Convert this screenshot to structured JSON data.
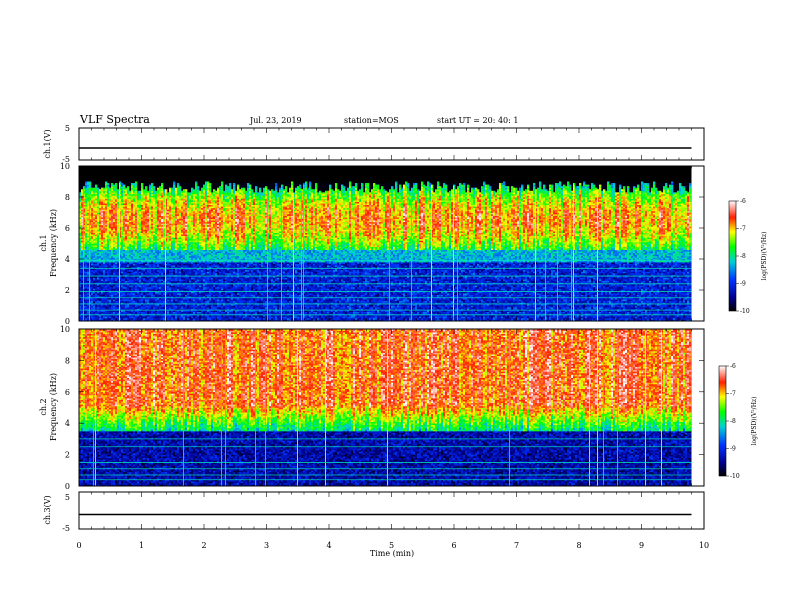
{
  "header": {
    "title": "VLF Spectra",
    "date": "Jul. 23, 2019",
    "station": "station=MOS",
    "start": "start UT =  20: 40: 1"
  },
  "chart_data": [
    {
      "type": "line",
      "panel": "ch1-voltage",
      "ylabel": "ch.1(V)",
      "ylim": [
        -5,
        5
      ],
      "yticks": [
        "5",
        "-5"
      ],
      "xlim": [
        0,
        10
      ],
      "series": [
        {
          "x": [
            0,
            9.8
          ],
          "y": [
            0,
            0
          ]
        }
      ]
    },
    {
      "type": "heatmap",
      "panel": "ch1-spectrogram",
      "ylabel_line1": "ch.1",
      "ylabel_line2": "Frequency (kHz)",
      "ylim": [
        0,
        10
      ],
      "yticks": [
        "0",
        "2",
        "4",
        "6",
        "8",
        "10"
      ],
      "xlim": [
        0,
        10
      ],
      "data_end": 9.8,
      "colorbar": {
        "label": "log(PSD)(V²/Hz)",
        "range": [
          -10,
          -6
        ],
        "ticks": [
          "-6",
          "-7",
          "-8",
          "-9",
          "-10"
        ]
      }
    },
    {
      "type": "heatmap",
      "panel": "ch2-spectrogram",
      "ylabel_line1": "ch.2",
      "ylabel_line2": "Frequency (kHz)",
      "ylim": [
        0,
        10
      ],
      "yticks": [
        "0",
        "2",
        "4",
        "6",
        "8",
        "10"
      ],
      "xlim": [
        0,
        10
      ],
      "data_end": 9.8,
      "colorbar": {
        "label": "log(PSD)(V²/Hz)",
        "range": [
          -10,
          -6
        ],
        "ticks": [
          "-6",
          "-7",
          "-8",
          "-9",
          "-10"
        ]
      }
    },
    {
      "type": "line",
      "panel": "ch3-voltage",
      "ylabel": "ch.3(V)",
      "ylim": [
        -5,
        5
      ],
      "yticks": [
        "5",
        "-5"
      ],
      "xlim": [
        0,
        10
      ],
      "series": [
        {
          "x": [
            0,
            9.8
          ],
          "y": [
            0,
            0
          ]
        }
      ]
    }
  ],
  "xaxis": {
    "label": "Time (min)",
    "ticks": [
      "0",
      "1",
      "2",
      "3",
      "4",
      "5",
      "6",
      "7",
      "8",
      "9",
      "10"
    ]
  }
}
